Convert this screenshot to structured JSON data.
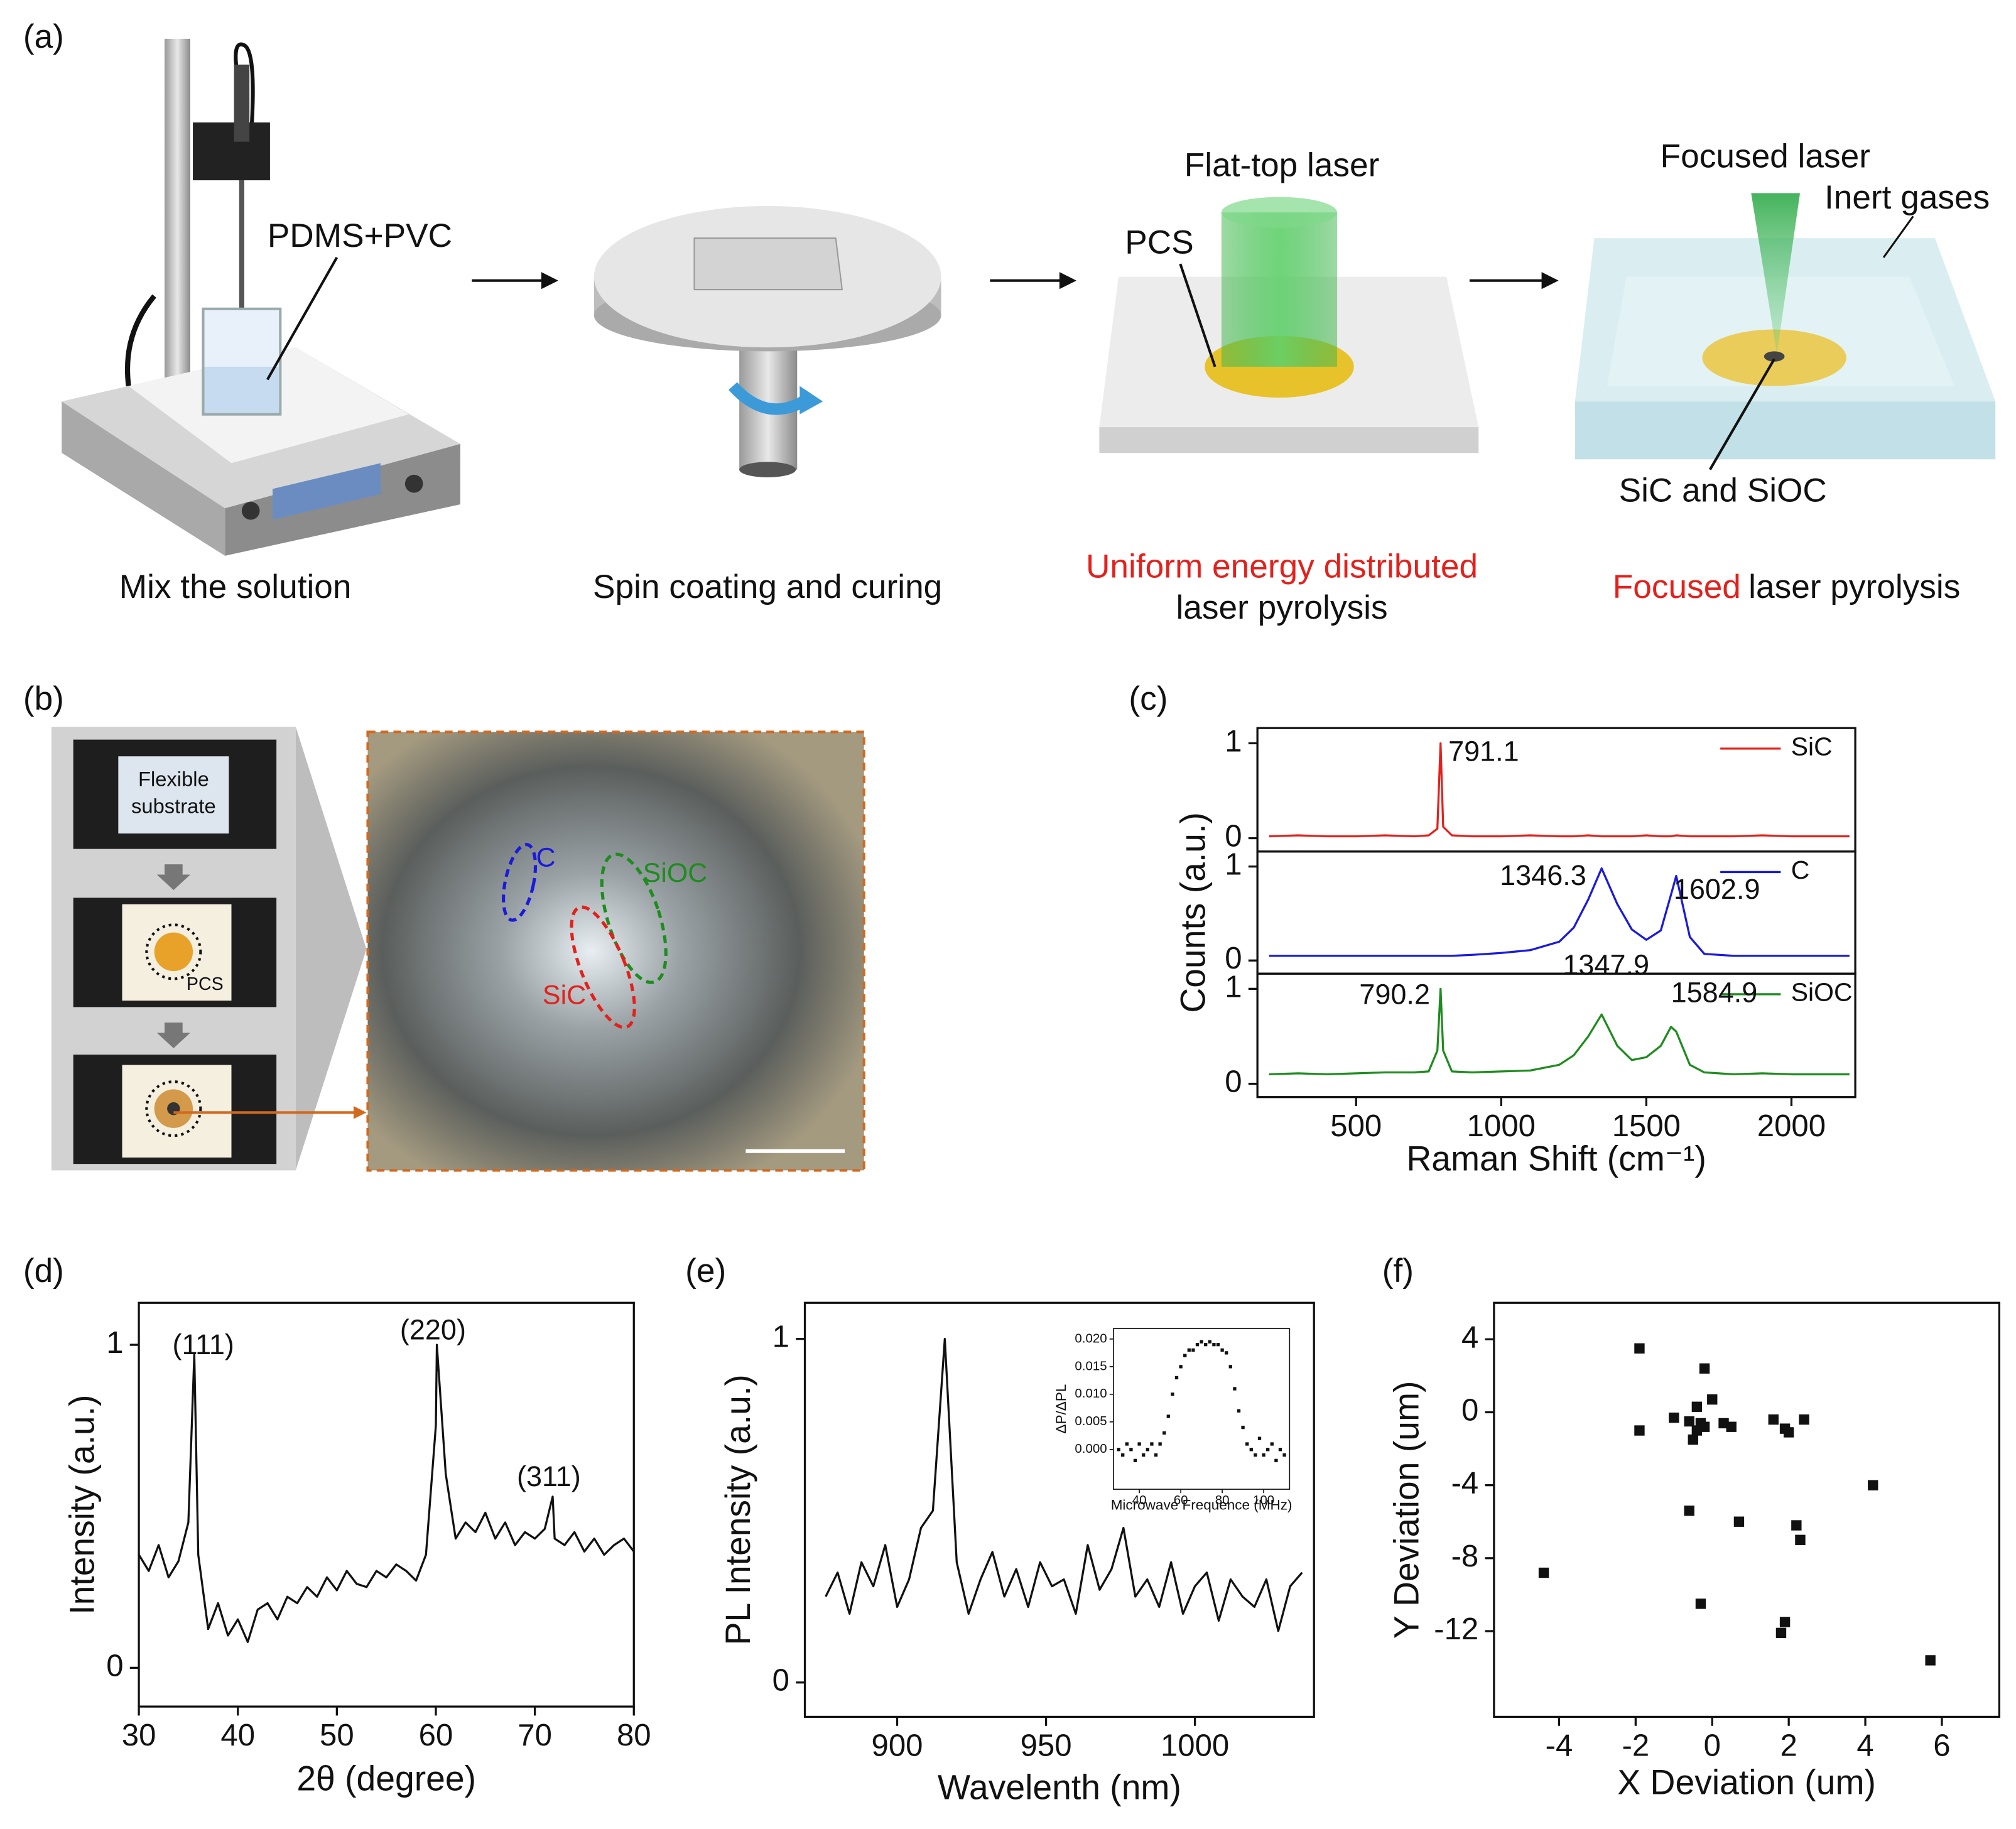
{
  "figure": {
    "panel_labels": [
      "(a)",
      "(b)",
      "(c)",
      "(d)",
      "(e)",
      "(f)"
    ]
  },
  "diagram": {
    "pdms_pvc": "PDMS+PVC",
    "step1": "Mix the solution",
    "step2": "Spin coating and curing",
    "flat_top": "Flat-top laser",
    "pcs": "PCS",
    "step3_red": "Uniform energy distributed",
    "step3": "laser pyrolysis",
    "focused_laser": "Focused laser",
    "inert": "Inert gases",
    "sic_sioc": "SiC and SiOC",
    "step4_red": "Focused",
    "step4": "laser pyrolysis"
  },
  "photos": {
    "substrate": [
      "Flexible",
      "substrate"
    ],
    "pcs": "PCS",
    "c": "C",
    "sioc": "SiOC",
    "sic": "SiC"
  },
  "chart_data": [
    {
      "type": "line",
      "x": [
        200,
        300,
        400,
        500,
        600,
        700,
        750,
        780,
        791,
        800,
        830,
        900,
        1000,
        1100,
        1200,
        1250,
        1300,
        1346,
        1400,
        1450,
        1500,
        1550,
        1585,
        1603,
        1650,
        1700,
        1800,
        1900,
        2000,
        2100,
        2200
      ],
      "series": [
        {
          "name": "SiC",
          "color": "#e3211c",
          "values": [
            0.02,
            0.03,
            0.02,
            0.02,
            0.03,
            0.02,
            0.03,
            0.1,
            1.0,
            0.12,
            0.03,
            0.02,
            0.02,
            0.03,
            0.02,
            0.02,
            0.03,
            0.02,
            0.02,
            0.02,
            0.03,
            0.02,
            0.02,
            0.03,
            0.02,
            0.02,
            0.02,
            0.03,
            0.02,
            0.02,
            0.02
          ]
        }
      ],
      "xlim": [
        160,
        2220
      ],
      "ylim": [
        -0.14,
        1.16
      ],
      "yticks": [
        0,
        1
      ],
      "peaks": [
        {
          "x": 791.1,
          "y": 1.0
        }
      ]
    },
    {
      "type": "line",
      "ylabel": "Counts (a.u.)",
      "x": [
        200,
        300,
        400,
        500,
        600,
        700,
        750,
        780,
        791,
        800,
        830,
        900,
        1000,
        1100,
        1200,
        1250,
        1300,
        1346,
        1400,
        1450,
        1500,
        1550,
        1585,
        1603,
        1650,
        1700,
        1800,
        1900,
        2000,
        2100,
        2200
      ],
      "series": [
        {
          "name": "C",
          "color": "#1a1adb",
          "values": [
            0.05,
            0.05,
            0.05,
            0.05,
            0.05,
            0.05,
            0.05,
            0.05,
            0.05,
            0.05,
            0.05,
            0.06,
            0.08,
            0.11,
            0.2,
            0.35,
            0.65,
            0.98,
            0.6,
            0.33,
            0.22,
            0.32,
            0.7,
            0.9,
            0.25,
            0.07,
            0.05,
            0.05,
            0.05,
            0.05,
            0.05
          ]
        }
      ],
      "xlim": [
        160,
        2220
      ],
      "ylim": [
        -0.14,
        1.16
      ],
      "yticks": [
        0,
        1
      ],
      "peaks": [
        {
          "x": 1346.3,
          "y": 0.98
        },
        {
          "x": 1602.9,
          "y": 0.9
        }
      ]
    },
    {
      "type": "line",
      "xlabel": "Raman Shift (cm⁻¹)",
      "x": [
        200,
        300,
        400,
        500,
        600,
        700,
        750,
        780,
        791,
        800,
        830,
        900,
        1000,
        1100,
        1200,
        1250,
        1300,
        1346,
        1400,
        1450,
        1500,
        1550,
        1585,
        1603,
        1650,
        1700,
        1800,
        1900,
        2000,
        2100,
        2200
      ],
      "series": [
        {
          "name": "SiOC",
          "color": "#1e8c1e",
          "values": [
            0.1,
            0.11,
            0.1,
            0.11,
            0.12,
            0.12,
            0.13,
            0.35,
            1.0,
            0.35,
            0.13,
            0.12,
            0.13,
            0.14,
            0.2,
            0.3,
            0.5,
            0.73,
            0.4,
            0.25,
            0.28,
            0.4,
            0.6,
            0.55,
            0.2,
            0.12,
            0.1,
            0.11,
            0.1,
            0.1,
            0.1
          ]
        }
      ],
      "xlim": [
        160,
        2220
      ],
      "ylim": [
        -0.14,
        1.16
      ],
      "xticks": [
        500,
        1000,
        1500,
        2000
      ],
      "yticks": [
        0,
        1
      ],
      "peaks": [
        {
          "x": 790.2,
          "y": 1.0
        },
        {
          "x": 1347.9,
          "y": 0.73
        },
        {
          "x": 1584.9,
          "y": 0.6
        }
      ]
    },
    {
      "type": "line",
      "xlabel": "2θ (degree)",
      "ylabel": "Intensity (a.u.)",
      "x": [
        30,
        31,
        32,
        33,
        34,
        35,
        35.6,
        36,
        37,
        38,
        39,
        40,
        41,
        42,
        43,
        44,
        45,
        46,
        47,
        48,
        49,
        50,
        51,
        52,
        53,
        54,
        55,
        56,
        57,
        58,
        59,
        60,
        60.1,
        61,
        62,
        63,
        64,
        65,
        66,
        67,
        68,
        69,
        70,
        71,
        71.8,
        72,
        73,
        74,
        75,
        76,
        77,
        78,
        79,
        80
      ],
      "series": [
        {
          "color": "#111111",
          "values": [
            0.35,
            0.3,
            0.38,
            0.28,
            0.33,
            0.45,
            0.97,
            0.35,
            0.12,
            0.2,
            0.1,
            0.15,
            0.08,
            0.18,
            0.2,
            0.15,
            0.22,
            0.2,
            0.25,
            0.22,
            0.28,
            0.24,
            0.3,
            0.26,
            0.25,
            0.3,
            0.28,
            0.32,
            0.3,
            0.27,
            0.35,
            0.75,
            1.0,
            0.6,
            0.4,
            0.45,
            0.42,
            0.48,
            0.4,
            0.45,
            0.38,
            0.42,
            0.4,
            0.43,
            0.53,
            0.4,
            0.38,
            0.42,
            0.36,
            0.4,
            0.35,
            0.38,
            0.4,
            0.36
          ]
        }
      ],
      "xlim": [
        30,
        80
      ],
      "ylim": [
        -0.12,
        1.13
      ],
      "xticks": [
        30,
        40,
        50,
        60,
        70,
        80
      ],
      "yticks": [
        0,
        1
      ],
      "peaks": [
        {
          "label": "(111)",
          "x": 35.6,
          "y": 0.97
        },
        {
          "label": "(220)",
          "x": 60.1,
          "y": 1.0
        },
        {
          "label": "(311)",
          "x": 71.8,
          "y": 0.53
        }
      ]
    },
    {
      "type": "line",
      "xlabel": "Wavelenth (nm)",
      "ylabel": "PL Intensity (a.u.)",
      "x": [
        876,
        880,
        884,
        888,
        892,
        896,
        900,
        904,
        908,
        912,
        916,
        920,
        924,
        928,
        932,
        936,
        940,
        944,
        948,
        952,
        956,
        960,
        964,
        968,
        972,
        976,
        980,
        984,
        988,
        992,
        996,
        1000,
        1004,
        1008,
        1012,
        1016,
        1020,
        1024,
        1028,
        1032,
        1036
      ],
      "series": [
        {
          "color": "#111111",
          "values": [
            0.25,
            0.32,
            0.2,
            0.35,
            0.28,
            0.4,
            0.22,
            0.3,
            0.45,
            0.5,
            1.0,
            0.35,
            0.2,
            0.3,
            0.38,
            0.25,
            0.33,
            0.22,
            0.35,
            0.28,
            0.3,
            0.2,
            0.4,
            0.27,
            0.33,
            0.45,
            0.25,
            0.3,
            0.22,
            0.35,
            0.2,
            0.28,
            0.32,
            0.18,
            0.3,
            0.25,
            0.22,
            0.3,
            0.15,
            0.28,
            0.32
          ]
        }
      ],
      "xlim": [
        869,
        1040
      ],
      "ylim": [
        -0.1,
        1.105
      ],
      "xticks": [
        900,
        950,
        1000
      ],
      "yticks": [
        0,
        1
      ]
    },
    {
      "type": "scatter",
      "xlabel": "Microwave Frequence (MHz)",
      "ylabel": "ΔP/ΔPL",
      "x": [
        30,
        32,
        34,
        36,
        38,
        40,
        42,
        44,
        46,
        48,
        50,
        52,
        54,
        56,
        58,
        60,
        62,
        64,
        66,
        68,
        70,
        72,
        74,
        76,
        78,
        80,
        82,
        84,
        86,
        88,
        90,
        92,
        94,
        96,
        98,
        100,
        102,
        104,
        106,
        108,
        110
      ],
      "series": [
        {
          "color": "#111111",
          "values": [
            0.0,
            -0.001,
            0.001,
            0.0,
            -0.002,
            0.001,
            -0.001,
            0.0,
            0.001,
            -0.001,
            0.001,
            0.003,
            0.006,
            0.01,
            0.013,
            0.015,
            0.017,
            0.018,
            0.018,
            0.019,
            0.0195,
            0.019,
            0.0195,
            0.019,
            0.019,
            0.018,
            0.0175,
            0.015,
            0.011,
            0.007,
            0.004,
            0.001,
            0.0,
            -0.001,
            0.002,
            -0.001,
            0.0,
            0.001,
            -0.002,
            0.0,
            -0.001
          ]
        }
      ],
      "xlim": [
        27.5,
        112.5
      ],
      "ylim": [
        -0.0072,
        0.0219
      ],
      "xticks": [
        40,
        60,
        80,
        100
      ],
      "yticks": [
        {
          "value": 0,
          "label": "0.000"
        },
        {
          "value": 0.005,
          "label": "0.005"
        },
        {
          "value": 0.01,
          "label": "0.010"
        },
        {
          "value": 0.015,
          "label": "0.015"
        },
        {
          "value": 0.02,
          "label": "0.020"
        }
      ]
    },
    {
      "type": "scatter",
      "xlabel": "X Deviation (um)",
      "ylabel": "Y Deviation (um)",
      "x": [
        -1.9,
        -0.2,
        0.0,
        -0.4,
        -1.0,
        -1.9,
        -0.6,
        -0.3,
        -0.4,
        -0.2,
        -0.5,
        0.3,
        0.5,
        1.6,
        2.0,
        1.9,
        2.4,
        4.2,
        -0.6,
        0.7,
        2.2,
        2.3,
        -4.4,
        -0.3,
        1.9,
        1.8,
        5.7
      ],
      "series": [
        {
          "color": "#111111",
          "values": [
            3.5,
            2.4,
            0.7,
            0.3,
            -0.3,
            -1.0,
            -0.5,
            -0.6,
            -1.0,
            -0.8,
            -1.5,
            -0.6,
            -0.8,
            -0.4,
            -1.1,
            -0.9,
            -0.4,
            -4.0,
            -5.4,
            -6.0,
            -6.2,
            -7.0,
            -8.8,
            -10.5,
            -11.5,
            -12.1,
            -13.6
          ]
        }
      ],
      "xlim": [
        -5.7,
        7.5
      ],
      "ylim": [
        -16.7,
        6
      ],
      "xticks": [
        -4,
        -2,
        0,
        2,
        4,
        6
      ],
      "yticks": [
        -12,
        -8,
        -4,
        0,
        4
      ]
    }
  ]
}
